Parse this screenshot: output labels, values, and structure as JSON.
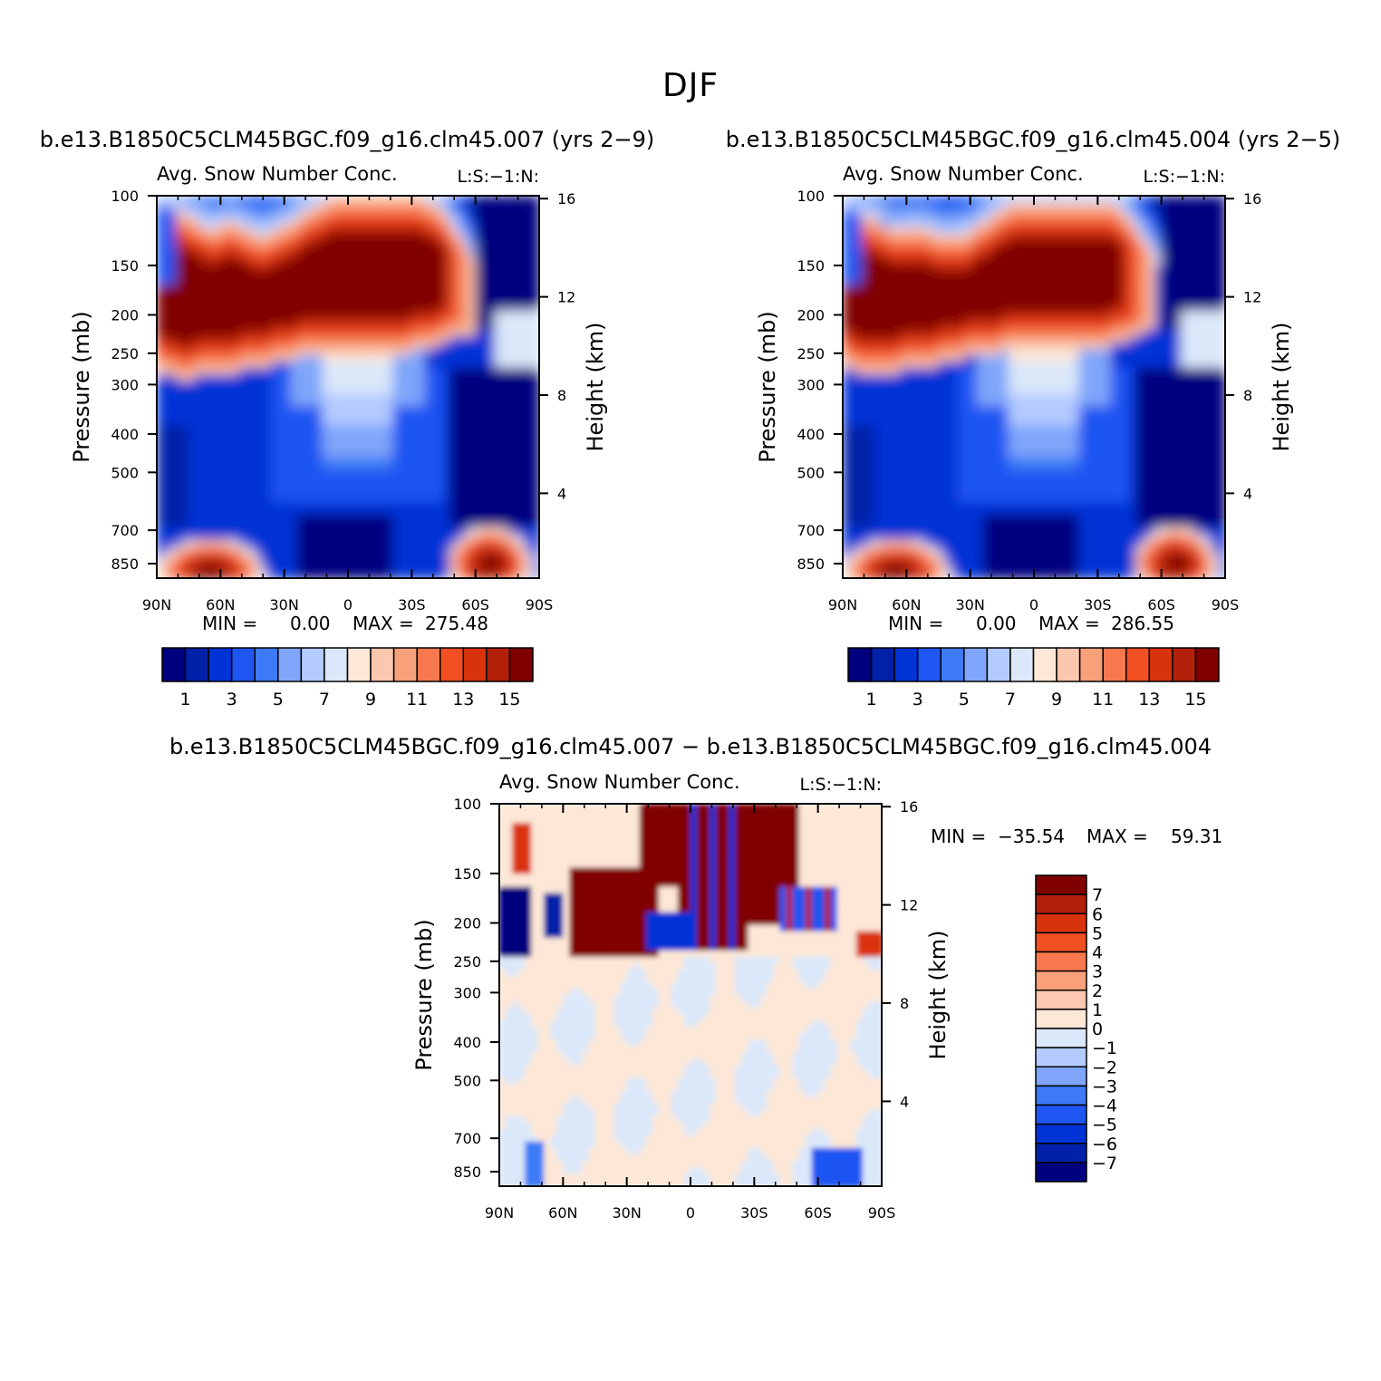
{
  "page": {
    "title": "DJF"
  },
  "chart_data": [
    {
      "type": "heatmap",
      "title": "b.e13.B1850C5CLM45BGC.f09_g16.clm45.007 (yrs 2−9)",
      "subtitle_left": "Avg. Snow Number Conc.",
      "subtitle_right": "L:S:−1:N:",
      "xlabel": "",
      "ylabel": "Pressure (mb)",
      "ylabel_right": "Height (km)",
      "x_ticks": [
        "90N",
        "60N",
        "30N",
        "0",
        "30S",
        "60S",
        "90S"
      ],
      "y_ticks": [
        "100",
        "150",
        "200",
        "250",
        "300",
        "400",
        "500",
        "700",
        "850"
      ],
      "y_ticks_right": [
        "16",
        "12",
        "8",
        "4"
      ],
      "ylim": [
        100,
        925
      ],
      "min_label": "MIN =",
      "min_value": "0.00",
      "max_label": "MAX =",
      "max_value": "275.48",
      "colorbar_labels": [
        "1",
        "3",
        "5",
        "7",
        "9",
        "11",
        "13",
        "15"
      ],
      "colorbar_levels": [
        0,
        1,
        2,
        3,
        4,
        5,
        6,
        7,
        8,
        9,
        10,
        11,
        12,
        13,
        14,
        15
      ],
      "colorbar_colors": [
        "#00007f",
        "#0021a8",
        "#0033d6",
        "#1f55f2",
        "#3d7af5",
        "#7fa6fa",
        "#b3cbff",
        "#dbe8fa",
        "#fde7d7",
        "#fbc7ae",
        "#f8a07a",
        "#f7784e",
        "#f24f22",
        "#d9330e",
        "#b3200a",
        "#800000"
      ]
    },
    {
      "type": "heatmap",
      "title": "b.e13.B1850C5CLM45BGC.f09_g16.clm45.004 (yrs 2−5)",
      "subtitle_left": "Avg. Snow Number Conc.",
      "subtitle_right": "L:S:−1:N:",
      "xlabel": "",
      "ylabel": "Pressure (mb)",
      "ylabel_right": "Height (km)",
      "x_ticks": [
        "90N",
        "60N",
        "30N",
        "0",
        "30S",
        "60S",
        "90S"
      ],
      "y_ticks": [
        "100",
        "150",
        "200",
        "250",
        "300",
        "400",
        "500",
        "700",
        "850"
      ],
      "y_ticks_right": [
        "16",
        "12",
        "8",
        "4"
      ],
      "ylim": [
        100,
        925
      ],
      "min_label": "MIN =",
      "min_value": "0.00",
      "max_label": "MAX =",
      "max_value": "286.55",
      "colorbar_labels": [
        "1",
        "3",
        "5",
        "7",
        "9",
        "11",
        "13",
        "15"
      ],
      "colorbar_levels": [
        0,
        1,
        2,
        3,
        4,
        5,
        6,
        7,
        8,
        9,
        10,
        11,
        12,
        13,
        14,
        15
      ],
      "colorbar_colors": [
        "#00007f",
        "#0021a8",
        "#0033d6",
        "#1f55f2",
        "#3d7af5",
        "#7fa6fa",
        "#b3cbff",
        "#dbe8fa",
        "#fde7d7",
        "#fbc7ae",
        "#f8a07a",
        "#f7784e",
        "#f24f22",
        "#d9330e",
        "#b3200a",
        "#800000"
      ]
    },
    {
      "type": "heatmap",
      "title": "b.e13.B1850C5CLM45BGC.f09_g16.clm45.007 − b.e13.B1850C5CLM45BGC.f09_g16.clm45.004",
      "subtitle_left": "Avg. Snow Number Conc.",
      "subtitle_right": "L:S:−1:N:",
      "xlabel": "",
      "ylabel": "Pressure (mb)",
      "ylabel_right": "Height (km)",
      "x_ticks": [
        "90N",
        "60N",
        "30N",
        "0",
        "30S",
        "60S",
        "90S"
      ],
      "y_ticks": [
        "100",
        "150",
        "200",
        "250",
        "300",
        "400",
        "500",
        "700",
        "850"
      ],
      "y_ticks_right": [
        "16",
        "12",
        "8",
        "4"
      ],
      "ylim": [
        100,
        925
      ],
      "min_label": "MIN =",
      "min_value": "−35.54",
      "max_label": "MAX =",
      "max_value": "59.31",
      "colorbar_labels": [
        "7",
        "6",
        "5",
        "4",
        "3",
        "2",
        "1",
        "0",
        "−1",
        "−2",
        "−3",
        "−4",
        "−5",
        "−6",
        "−7"
      ],
      "colorbar_colors": [
        "#800000",
        "#b3200a",
        "#d9330e",
        "#f24f22",
        "#f7784e",
        "#f8a07a",
        "#fbc7ae",
        "#fde7d7",
        "#dbe8fa",
        "#b3cbff",
        "#7fa6fa",
        "#3d7af5",
        "#1f55f2",
        "#0033d6",
        "#0021a8",
        "#00007f"
      ]
    }
  ]
}
